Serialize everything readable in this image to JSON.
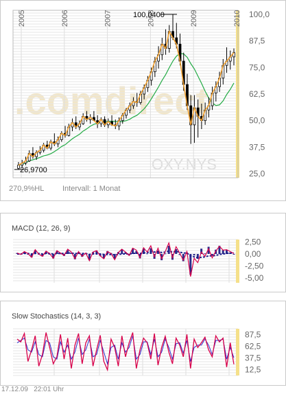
{
  "chart_data": [
    {
      "type": "candlestick",
      "symbol": "OXY.NYS",
      "x": [
        "2005",
        "2006",
        "2007",
        "2008",
        "2009",
        "2010"
      ],
      "ylim": [
        25,
        100
      ],
      "yticks": [
        "100,0",
        "87,5",
        "75,0",
        "62,5",
        "50,0",
        "37,5",
        "25,0"
      ],
      "annotations": {
        "high_label": "100,0400",
        "low_label": "26,9700",
        "high": 100.04,
        "low": 26.97
      },
      "info": {
        "perf": "270,9%HL",
        "interval": "Intervall: 1 Monat"
      },
      "watermark": ".comdirect",
      "colors": {
        "close_line": "#f0a030",
        "avg_line": "#22aa44",
        "candle": "#000000",
        "highlight": "#f5e08a"
      },
      "series": [
        {
          "values": [
            {
              "o": 27.5,
              "h": 30.5,
              "l": 27.0,
              "c": 29.0
            },
            {
              "o": 29.0,
              "h": 31.5,
              "l": 28.0,
              "c": 30.0
            },
            {
              "o": 30.0,
              "h": 33.0,
              "l": 29.0,
              "c": 31.0
            },
            {
              "o": 31.0,
              "h": 36.0,
              "l": 30.5,
              "c": 34.5
            },
            {
              "o": 34.5,
              "h": 37.5,
              "l": 32.0,
              "c": 33.0
            },
            {
              "o": 33.0,
              "h": 36.0,
              "l": 31.5,
              "c": 35.0
            },
            {
              "o": 35.0,
              "h": 38.0,
              "l": 34.0,
              "c": 36.0
            },
            {
              "o": 36.0,
              "h": 39.5,
              "l": 35.0,
              "c": 38.5
            },
            {
              "o": 38.5,
              "h": 40.5,
              "l": 36.5,
              "c": 37.0
            },
            {
              "o": 37.0,
              "h": 41.0,
              "l": 36.0,
              "c": 40.0
            },
            {
              "o": 40.0,
              "h": 44.0,
              "l": 38.0,
              "c": 39.0
            },
            {
              "o": 39.0,
              "h": 42.5,
              "l": 37.5,
              "c": 41.0
            },
            {
              "o": 41.0,
              "h": 45.0,
              "l": 40.0,
              "c": 44.0
            },
            {
              "o": 44.0,
              "h": 47.5,
              "l": 42.0,
              "c": 43.0
            },
            {
              "o": 43.0,
              "h": 48.5,
              "l": 42.5,
              "c": 47.0
            },
            {
              "o": 47.0,
              "h": 51.0,
              "l": 45.0,
              "c": 49.0
            },
            {
              "o": 49.0,
              "h": 52.0,
              "l": 46.0,
              "c": 47.0
            },
            {
              "o": 47.0,
              "h": 50.0,
              "l": 45.5,
              "c": 48.5
            },
            {
              "o": 48.5,
              "h": 53.5,
              "l": 48.0,
              "c": 52.0
            },
            {
              "o": 52.0,
              "h": 54.5,
              "l": 49.5,
              "c": 50.5
            },
            {
              "o": 50.5,
              "h": 53.0,
              "l": 48.5,
              "c": 51.5
            },
            {
              "o": 51.5,
              "h": 54.5,
              "l": 50.0,
              "c": 50.0
            },
            {
              "o": 50.0,
              "h": 52.5,
              "l": 46.5,
              "c": 48.5
            },
            {
              "o": 48.5,
              "h": 51.5,
              "l": 47.0,
              "c": 50.5
            },
            {
              "o": 50.5,
              "h": 52.0,
              "l": 47.0,
              "c": 48.0
            },
            {
              "o": 48.0,
              "h": 51.0,
              "l": 46.5,
              "c": 49.5
            },
            {
              "o": 49.5,
              "h": 52.5,
              "l": 47.5,
              "c": 48.0
            },
            {
              "o": 48.0,
              "h": 50.5,
              "l": 46.0,
              "c": 47.5
            },
            {
              "o": 47.5,
              "h": 51.5,
              "l": 45.5,
              "c": 50.0
            },
            {
              "o": 50.0,
              "h": 53.5,
              "l": 48.5,
              "c": 52.5
            },
            {
              "o": 52.5,
              "h": 56.0,
              "l": 51.0,
              "c": 55.0
            },
            {
              "o": 55.0,
              "h": 58.5,
              "l": 53.5,
              "c": 57.0
            },
            {
              "o": 57.0,
              "h": 61.0,
              "l": 55.5,
              "c": 59.0
            },
            {
              "o": 59.0,
              "h": 63.0,
              "l": 56.5,
              "c": 58.5
            },
            {
              "o": 58.5,
              "h": 64.0,
              "l": 57.5,
              "c": 62.5
            },
            {
              "o": 62.5,
              "h": 67.0,
              "l": 60.0,
              "c": 65.5
            },
            {
              "o": 65.5,
              "h": 71.0,
              "l": 63.5,
              "c": 69.0
            },
            {
              "o": 69.0,
              "h": 75.0,
              "l": 66.5,
              "c": 73.0
            },
            {
              "o": 73.0,
              "h": 80.0,
              "l": 70.5,
              "c": 78.0
            },
            {
              "o": 78.0,
              "h": 85.0,
              "l": 74.5,
              "c": 81.0
            },
            {
              "o": 81.0,
              "h": 89.0,
              "l": 78.5,
              "c": 86.0
            },
            {
              "o": 86.0,
              "h": 93.0,
              "l": 81.0,
              "c": 84.0
            },
            {
              "o": 84.0,
              "h": 95.0,
              "l": 82.0,
              "c": 92.0
            },
            {
              "o": 92.0,
              "h": 100.04,
              "l": 88.0,
              "c": 89.0
            },
            {
              "o": 89.0,
              "h": 96.0,
              "l": 84.0,
              "c": 86.0
            },
            {
              "o": 86.0,
              "h": 91.0,
              "l": 76.0,
              "c": 78.0
            },
            {
              "o": 78.0,
              "h": 82.0,
              "l": 64.0,
              "c": 67.0
            },
            {
              "o": 67.0,
              "h": 72.0,
              "l": 55.0,
              "c": 57.0
            },
            {
              "o": 57.0,
              "h": 62.0,
              "l": 39.0,
              "c": 48.0
            },
            {
              "o": 48.0,
              "h": 62.0,
              "l": 39.5,
              "c": 56.0
            },
            {
              "o": 56.0,
              "h": 60.0,
              "l": 42.0,
              "c": 52.0
            },
            {
              "o": 52.0,
              "h": 58.0,
              "l": 46.0,
              "c": 50.0
            },
            {
              "o": 50.0,
              "h": 58.5,
              "l": 48.0,
              "c": 55.0
            },
            {
              "o": 55.0,
              "h": 61.0,
              "l": 51.5,
              "c": 57.0
            },
            {
              "o": 57.0,
              "h": 66.0,
              "l": 55.0,
              "c": 63.0
            },
            {
              "o": 63.0,
              "h": 68.5,
              "l": 59.0,
              "c": 66.0
            },
            {
              "o": 66.0,
              "h": 73.0,
              "l": 63.5,
              "c": 70.0
            },
            {
              "o": 70.0,
              "h": 79.0,
              "l": 67.0,
              "c": 76.0
            },
            {
              "o": 76.0,
              "h": 84.5,
              "l": 72.5,
              "c": 78.0
            },
            {
              "o": 78.0,
              "h": 83.0,
              "l": 74.0,
              "c": 80.0
            },
            {
              "o": 80.0,
              "h": 84.0,
              "l": 76.0,
              "c": 82.0
            }
          ]
        }
      ]
    },
    {
      "type": "line",
      "title": "MACD (12, 26, 9)",
      "ylim": [
        -6,
        3
      ],
      "yticks": [
        "2,50",
        "0,00",
        "-2,50",
        "-5,00"
      ],
      "colors": {
        "macd": "#d8004a",
        "signal": "#1a1a8a",
        "histogram": "#2a2a8a"
      },
      "series": [
        {
          "values": [
            0.2,
            -0.1,
            0.5,
            0.1,
            -0.7,
            0.9,
            0.0,
            -0.5,
            0.6,
            0.1,
            -0.9,
            0.7,
            0.2,
            -0.3,
            1.0,
            0.4,
            -1.0,
            0.5,
            -0.5,
            0.2,
            -1.4,
            0.4,
            0.7,
            -0.4,
            -1.0,
            0.5,
            0.1,
            -1.2,
            0.3,
            1.0,
            0.4,
            -0.3,
            1.2,
            0.8,
            -0.8,
            1.3,
            0.4,
            1.7,
            -0.6,
            1.2,
            -1.0,
            0.5,
            2.3,
            -0.8,
            1.5,
            0.2,
            -1.3,
            0.5,
            -4.7,
            -0.9,
            -1.8,
            0.4,
            -0.5,
            1.1,
            -0.8,
            0.6,
            1.6,
            0.8,
            0.9,
            0.5,
            0.1
          ]
        },
        {
          "values": [
            0.0,
            0.0,
            0.1,
            0.1,
            0.0,
            0.1,
            0.1,
            0.0,
            0.1,
            0.1,
            0.0,
            0.1,
            0.1,
            0.1,
            0.2,
            0.2,
            0.1,
            0.1,
            0.1,
            0.1,
            -0.1,
            0.0,
            0.0,
            0.0,
            -0.1,
            -0.1,
            -0.1,
            -0.2,
            -0.1,
            0.0,
            0.0,
            0.0,
            0.1,
            0.2,
            0.1,
            0.2,
            0.3,
            0.5,
            0.4,
            0.5,
            0.3,
            0.4,
            0.6,
            0.4,
            0.5,
            0.4,
            0.2,
            0.2,
            -0.4,
            -0.6,
            -0.8,
            -0.7,
            -0.6,
            -0.4,
            -0.4,
            -0.3,
            -0.1,
            0.0,
            0.1,
            0.2,
            0.2
          ]
        }
      ]
    },
    {
      "type": "line",
      "title": "Slow Stochastics (14, 3, 3)",
      "ylim": [
        0,
        100
      ],
      "yticks": [
        "87,5",
        "62,5",
        "37,5",
        "12,5"
      ],
      "colors": {
        "k": "#d8004a",
        "d": "#2a2acc"
      },
      "series": [
        {
          "values": [
            78,
            72,
            90,
            30,
            55,
            85,
            20,
            45,
            92,
            60,
            25,
            40,
            88,
            35,
            80,
            15,
            65,
            90,
            25,
            70,
            85,
            20,
            55,
            86,
            30,
            12,
            78,
            60,
            20,
            85,
            40,
            70,
            92,
            15,
            55,
            80,
            70,
            35,
            90,
            22,
            60,
            84,
            50,
            25,
            80,
            65,
            40,
            88,
            15,
            78,
            60,
            70,
            82,
            55,
            40,
            85,
            72,
            80,
            18,
            70,
            24
          ]
        },
        {
          "values": [
            70,
            75,
            80,
            55,
            50,
            72,
            45,
            40,
            75,
            70,
            40,
            35,
            72,
            50,
            65,
            35,
            50,
            80,
            45,
            55,
            78,
            40,
            45,
            75,
            50,
            25,
            60,
            65,
            35,
            70,
            50,
            60,
            85,
            35,
            45,
            72,
            72,
            45,
            78,
            40,
            50,
            78,
            60,
            35,
            68,
            70,
            48,
            75,
            30,
            60,
            65,
            65,
            78,
            65,
            45,
            75,
            75,
            78,
            35,
            60,
            38
          ]
        }
      ]
    }
  ],
  "footer": {
    "date": "17.12.09",
    "time": "22:01 Uhr"
  }
}
